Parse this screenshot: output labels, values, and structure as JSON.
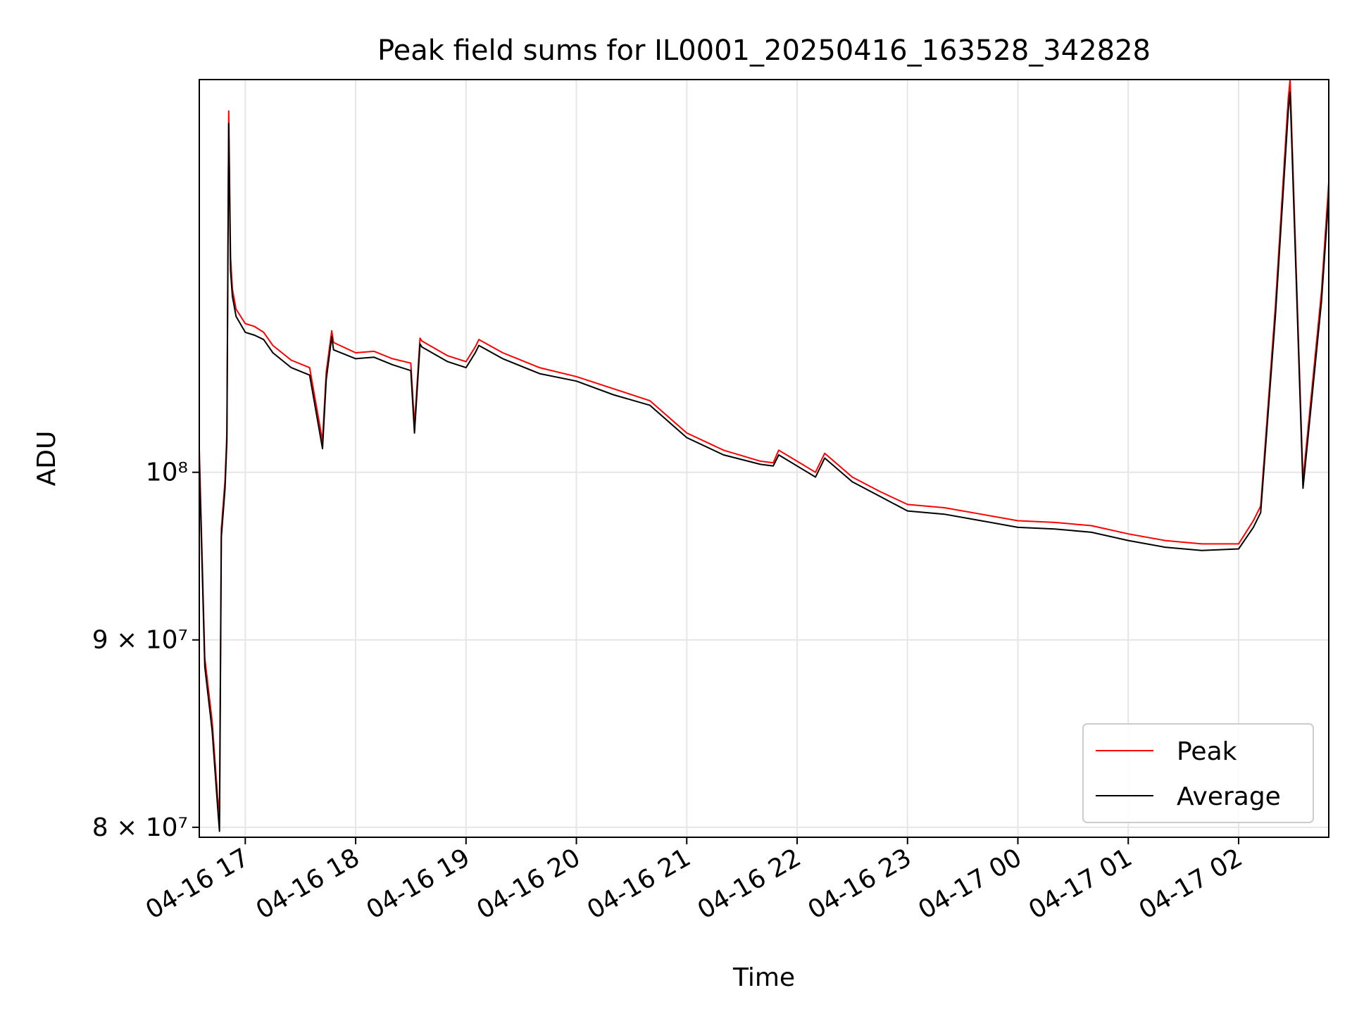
{
  "chart_data": {
    "type": "line",
    "title": "Peak field sums for IL0001_20250416_163528_342828",
    "xlabel": "Time",
    "ylabel": "ADU",
    "yscale": "log",
    "grid": true,
    "legend_position": "lower-right",
    "xlim": [
      "2025-04-16 16:35",
      "2025-04-17 02:49"
    ],
    "ylim": [
      79500000,
      128000000
    ],
    "x_ticks": [
      {
        "value": "2025-04-16 17:00",
        "label": "04-16 17"
      },
      {
        "value": "2025-04-16 18:00",
        "label": "04-16 18"
      },
      {
        "value": "2025-04-16 19:00",
        "label": "04-16 19"
      },
      {
        "value": "2025-04-16 20:00",
        "label": "04-16 20"
      },
      {
        "value": "2025-04-16 21:00",
        "label": "04-16 21"
      },
      {
        "value": "2025-04-16 22:00",
        "label": "04-16 22"
      },
      {
        "value": "2025-04-16 23:00",
        "label": "04-16 23"
      },
      {
        "value": "2025-04-17 00:00",
        "label": "04-17 00"
      },
      {
        "value": "2025-04-17 01:00",
        "label": "04-17 01"
      },
      {
        "value": "2025-04-17 02:00",
        "label": "04-17 02"
      }
    ],
    "y_ticks": [
      {
        "value": 80000000,
        "label": "8 × 10⁷"
      },
      {
        "value": 90000000,
        "label": "9 × 10⁷"
      },
      {
        "value": 100000000,
        "label": "10⁸"
      }
    ],
    "series": [
      {
        "name": "Peak",
        "color": "#ff0000",
        "x": [
          "2025-04-16 16:35",
          "2025-04-16 16:38",
          "2025-04-16 16:42",
          "2025-04-16 16:45",
          "2025-04-16 16:46",
          "2025-04-16 16:47",
          "2025-04-16 16:49",
          "2025-04-16 16:50",
          "2025-04-16 16:51",
          "2025-04-16 16:52",
          "2025-04-16 16:53",
          "2025-04-16 16:55",
          "2025-04-16 17:00",
          "2025-04-16 17:05",
          "2025-04-16 17:10",
          "2025-04-16 17:15",
          "2025-04-16 17:25",
          "2025-04-16 17:35",
          "2025-04-16 17:42",
          "2025-04-16 17:44",
          "2025-04-16 17:47",
          "2025-04-16 17:48",
          "2025-04-16 18:00",
          "2025-04-16 18:10",
          "2025-04-16 18:20",
          "2025-04-16 18:30",
          "2025-04-16 18:32",
          "2025-04-16 18:35",
          "2025-04-16 18:36",
          "2025-04-16 18:50",
          "2025-04-16 19:00",
          "2025-04-16 19:05",
          "2025-04-16 19:07",
          "2025-04-16 19:20",
          "2025-04-16 19:40",
          "2025-04-16 20:00",
          "2025-04-16 20:20",
          "2025-04-16 20:40",
          "2025-04-16 21:00",
          "2025-04-16 21:20",
          "2025-04-16 21:40",
          "2025-04-16 21:47",
          "2025-04-16 21:50",
          "2025-04-16 22:10",
          "2025-04-16 22:15",
          "2025-04-16 22:30",
          "2025-04-16 22:45",
          "2025-04-16 23:00",
          "2025-04-16 23:20",
          "2025-04-16 23:40",
          "2025-04-17 00:00",
          "2025-04-17 00:20",
          "2025-04-17 00:40",
          "2025-04-17 01:00",
          "2025-04-17 01:20",
          "2025-04-17 01:40",
          "2025-04-17 02:00",
          "2025-04-17 02:08",
          "2025-04-17 02:12",
          "2025-04-17 02:20",
          "2025-04-17 02:27",
          "2025-04-17 02:28",
          "2025-04-17 02:35",
          "2025-04-17 02:45",
          "2025-04-17 02:49"
        ],
        "values": [
          101500000,
          89000000,
          85500000,
          81500000,
          80800000,
          96500000,
          99500000,
          102500000,
          125500000,
          114500000,
          112200000,
          110800000,
          109800000,
          109600000,
          109200000,
          108300000,
          107300000,
          106800000,
          102000000,
          106500000,
          109300000,
          108500000,
          107800000,
          107900000,
          107400000,
          107100000,
          103000000,
          108800000,
          108600000,
          107600000,
          107200000,
          108200000,
          108700000,
          107800000,
          106800000,
          106200000,
          105400000,
          104600000,
          102500000,
          101400000,
          100700000,
          100600000,
          101400000,
          100000000,
          101200000,
          99700000,
          98800000,
          98000000,
          97800000,
          97400000,
          97000000,
          96900000,
          96700000,
          96200000,
          95800000,
          95600000,
          95600000,
          97000000,
          97900000,
          111000000,
          126500000,
          128000000,
          99500000,
          112000000,
          120000000
        ]
      },
      {
        "name": "Average",
        "color": "#000000",
        "x": [
          "2025-04-16 16:35",
          "2025-04-16 16:38",
          "2025-04-16 16:42",
          "2025-04-16 16:45",
          "2025-04-16 16:46",
          "2025-04-16 16:47",
          "2025-04-16 16:49",
          "2025-04-16 16:50",
          "2025-04-16 16:51",
          "2025-04-16 16:52",
          "2025-04-16 16:53",
          "2025-04-16 16:55",
          "2025-04-16 17:00",
          "2025-04-16 17:05",
          "2025-04-16 17:10",
          "2025-04-16 17:15",
          "2025-04-16 17:25",
          "2025-04-16 17:35",
          "2025-04-16 17:42",
          "2025-04-16 17:44",
          "2025-04-16 17:47",
          "2025-04-16 17:48",
          "2025-04-16 18:00",
          "2025-04-16 18:10",
          "2025-04-16 18:20",
          "2025-04-16 18:30",
          "2025-04-16 18:32",
          "2025-04-16 18:35",
          "2025-04-16 18:36",
          "2025-04-16 18:50",
          "2025-04-16 19:00",
          "2025-04-16 19:05",
          "2025-04-16 19:07",
          "2025-04-16 19:20",
          "2025-04-16 19:40",
          "2025-04-16 20:00",
          "2025-04-16 20:20",
          "2025-04-16 20:40",
          "2025-04-16 21:00",
          "2025-04-16 21:20",
          "2025-04-16 21:40",
          "2025-04-16 21:47",
          "2025-04-16 21:50",
          "2025-04-16 22:10",
          "2025-04-16 22:15",
          "2025-04-16 22:30",
          "2025-04-16 22:45",
          "2025-04-16 23:00",
          "2025-04-16 23:20",
          "2025-04-16 23:40",
          "2025-04-17 00:00",
          "2025-04-17 00:20",
          "2025-04-17 00:40",
          "2025-04-17 01:00",
          "2025-04-17 01:20",
          "2025-04-17 01:40",
          "2025-04-17 02:00",
          "2025-04-17 02:08",
          "2025-04-17 02:12",
          "2025-04-17 02:20",
          "2025-04-17 02:27",
          "2025-04-17 02:28",
          "2025-04-17 02:35",
          "2025-04-17 02:45",
          "2025-04-17 02:49"
        ],
        "values": [
          100800000,
          88500000,
          85000000,
          81000000,
          79800000,
          96000000,
          99000000,
          102000000,
          124500000,
          113500000,
          111700000,
          110300000,
          109200000,
          109000000,
          108700000,
          107800000,
          106800000,
          106300000,
          101500000,
          106000000,
          108900000,
          108000000,
          107400000,
          107500000,
          107000000,
          106600000,
          102500000,
          108400000,
          108200000,
          107200000,
          106800000,
          107800000,
          108300000,
          107400000,
          106400000,
          105900000,
          105000000,
          104300000,
          102200000,
          101100000,
          100500000,
          100400000,
          101100000,
          99700000,
          100900000,
          99400000,
          98500000,
          97600000,
          97400000,
          97000000,
          96600000,
          96500000,
          96300000,
          95800000,
          95400000,
          95200000,
          95300000,
          96600000,
          97500000,
          110300000,
          125500000,
          127000000,
          99000000,
          111300000,
          119000000
        ]
      }
    ]
  }
}
